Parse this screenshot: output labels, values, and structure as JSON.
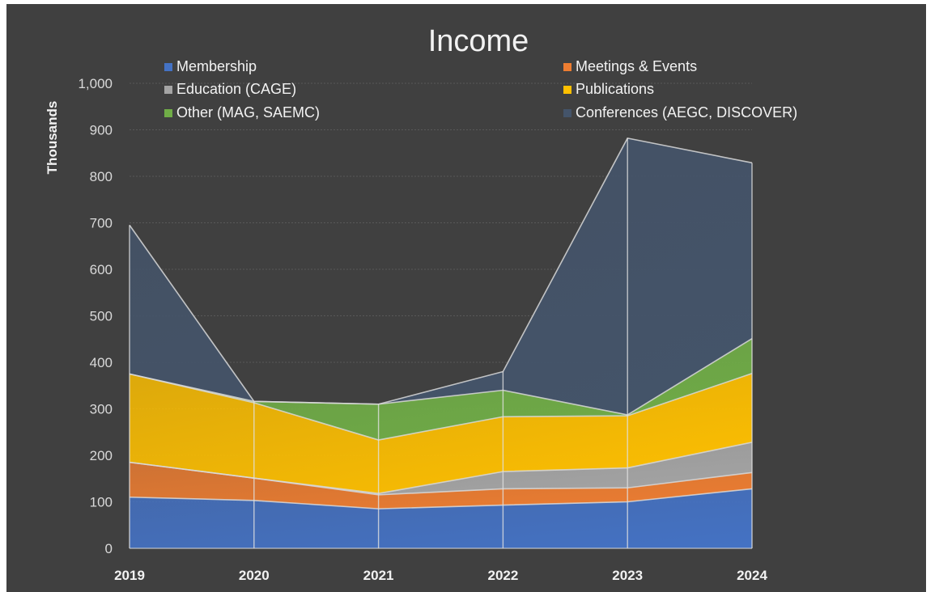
{
  "chart_data": {
    "type": "area",
    "stacked": true,
    "title": "Income",
    "xlabel": "",
    "ylabel": "Thousands",
    "categories": [
      "2019",
      "2020",
      "2021",
      "2022",
      "2023",
      "2024"
    ],
    "ylim": [
      0,
      1000
    ],
    "yticks": [
      "0",
      "100",
      "200",
      "300",
      "400",
      "500",
      "600",
      "700",
      "800",
      "900",
      "1,000"
    ],
    "grid": true,
    "legend_position": "top",
    "series": [
      {
        "name": "Membership",
        "color": "#4472c4",
        "values": [
          110,
          103,
          85,
          93,
          100,
          128
        ]
      },
      {
        "name": "Meetings & Events",
        "color": "#ed7d31",
        "values": [
          75,
          48,
          30,
          35,
          30,
          35
        ]
      },
      {
        "name": "Education (CAGE)",
        "color": "#a5a5a5",
        "values": [
          0,
          0,
          3,
          37,
          43,
          65
        ]
      },
      {
        "name": "Publications",
        "color": "#ffc000",
        "values": [
          190,
          162,
          115,
          118,
          112,
          148
        ]
      },
      {
        "name": "Other (MAG, SAEMC)",
        "color": "#70ad47",
        "values": [
          0,
          3,
          77,
          57,
          2,
          75
        ]
      },
      {
        "name": "Conferences (AEGC, DISCOVER)",
        "color": "#44546a",
        "values": [
          320,
          0,
          0,
          40,
          595,
          378
        ]
      }
    ]
  }
}
